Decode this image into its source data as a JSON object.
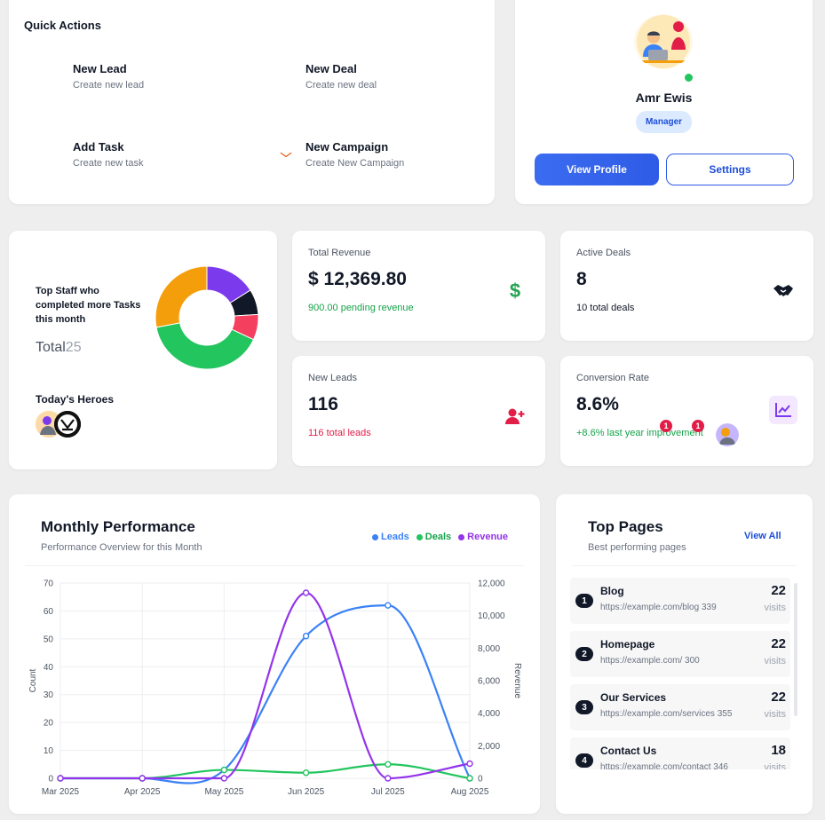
{
  "quick_actions": {
    "title": "Quick Actions",
    "items": [
      {
        "name": "New Lead",
        "sub": "Create new lead",
        "icon": "add-user-icon",
        "bg": "#eef4ff",
        "icon_bg": "#2f66e8"
      },
      {
        "name": "New Deal",
        "sub": "Create new deal",
        "icon": "handshake-icon",
        "bg": "#edfbf2",
        "icon_bg": "#16a34a"
      },
      {
        "name": "Add Task",
        "sub": "Create new task",
        "icon": "task-list-icon",
        "bg": "#f8f2ff",
        "icon_bg": "#9333ea"
      },
      {
        "name": "New Campaign",
        "sub": "Create New Campaign",
        "icon": "mail-icon",
        "bg": "#fff6ec",
        "icon_bg": "#ea580c"
      }
    ]
  },
  "profile": {
    "name": "Amr Ewis",
    "role": "Manager",
    "view_profile": "View Profile",
    "settings": "Settings",
    "status_color": "#22c55e"
  },
  "staff": {
    "text": "Top Staff who completed more Tasks this month",
    "total_label": "Total",
    "total_value": "25",
    "heroes_title": "Today's Heroes",
    "donut": [
      {
        "value": 4,
        "color": "#7c3aed"
      },
      {
        "value": 2,
        "color": "#111827"
      },
      {
        "value": 2,
        "color": "#f43f5e"
      },
      {
        "value": 10,
        "color": "#22c55e"
      },
      {
        "value": 7,
        "color": "#f59e0b"
      }
    ]
  },
  "stats": {
    "revenue": {
      "label": "Total Revenue",
      "value": "$ 12,369.80",
      "sub": "900.00 pending revenue",
      "icon": "dollar-icon",
      "sub_color": "#16a34a",
      "icon_color": "#22a352"
    },
    "deals": {
      "label": "Active Deals",
      "value": "8",
      "sub": "10 total deals",
      "icon": "handshake-icon",
      "sub_color": "#111827",
      "icon_color": "#111827"
    },
    "leads": {
      "label": "New Leads",
      "value": "116",
      "sub": "116 total leads",
      "icon": "add-user-icon",
      "sub_color": "#e11d48",
      "icon_color": "#e11d48"
    },
    "conversion": {
      "label": "Conversion Rate",
      "value": "8.6%",
      "sub": "+8.6% last year improvement",
      "icon": "trend-chart-icon",
      "sub_color": "#16a34a",
      "icon_color": "#7c3aed",
      "badges": [
        "1",
        "1"
      ]
    }
  },
  "performance": {
    "title": "Monthly Performance",
    "subtitle": "Performance Overview for this Month",
    "legend": [
      {
        "name": "Leads",
        "color": "#3b82f6"
      },
      {
        "name": "Deals",
        "color": "#22c55e"
      },
      {
        "name": "Revenue",
        "color": "#9333ea"
      }
    ]
  },
  "chart_data": {
    "type": "line",
    "x": [
      "Mar 2025",
      "Apr 2025",
      "May 2025",
      "Jun 2025",
      "Jul 2025",
      "Aug 2025"
    ],
    "ylabel": "Count",
    "y2label": "Revenue",
    "ylim": [
      0,
      70
    ],
    "y2lim": [
      0,
      12000
    ],
    "yticks": [
      "0",
      "10",
      "20",
      "30",
      "40",
      "50",
      "60",
      "70"
    ],
    "y2ticks": [
      "0",
      "2,000",
      "4,000",
      "6,000",
      "8,000",
      "10,000",
      "12,000"
    ],
    "series": [
      {
        "name": "Leads",
        "axis": "left",
        "color": "#3b82f6",
        "values": [
          0,
          0,
          3,
          51,
          62,
          0
        ]
      },
      {
        "name": "Deals",
        "axis": "left",
        "color": "#22c55e",
        "values": [
          0,
          0,
          3,
          2,
          5,
          0
        ]
      },
      {
        "name": "Revenue",
        "axis": "right",
        "color": "#9333ea",
        "values": [
          0,
          0,
          0,
          11400,
          0,
          900
        ]
      }
    ],
    "grid": true
  },
  "top_pages": {
    "title": "Top Pages",
    "subtitle": "Best performing pages",
    "view_all": "View All",
    "visits_label": "visits",
    "items": [
      {
        "rank": "1",
        "name": "Blog",
        "url": "https://example.com/blog 339",
        "visits": "22"
      },
      {
        "rank": "2",
        "name": "Homepage",
        "url": "https://example.com/ 300",
        "visits": "22"
      },
      {
        "rank": "3",
        "name": "Our Services",
        "url": "https://example.com/services 355",
        "visits": "22"
      },
      {
        "rank": "4",
        "name": "Contact Us",
        "url": "https://example.com/contact 346",
        "visits": "18"
      }
    ]
  }
}
